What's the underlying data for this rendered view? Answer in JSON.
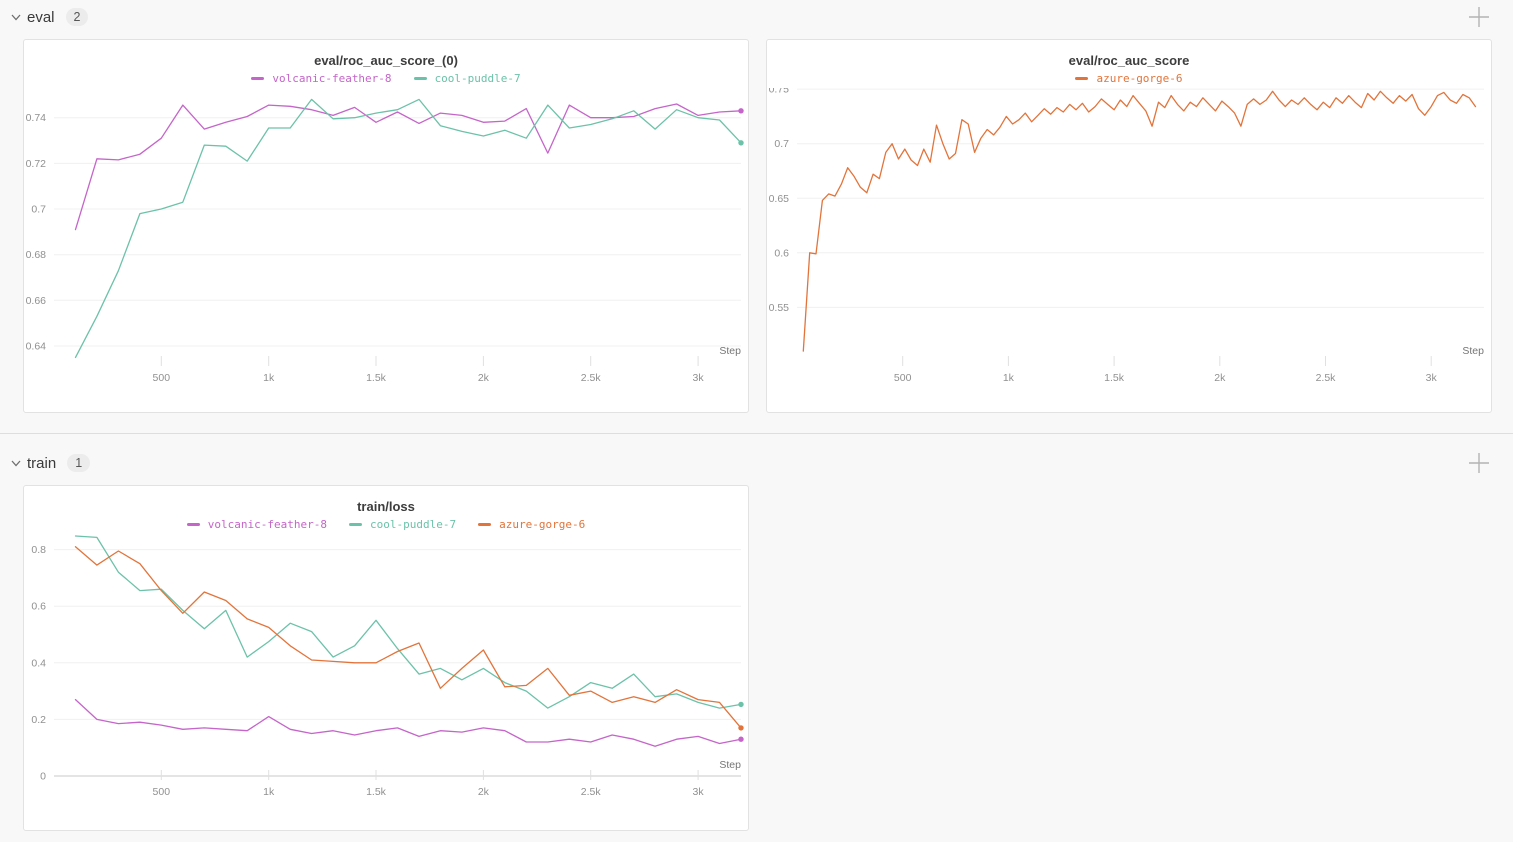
{
  "sections": [
    {
      "label": "eval",
      "count": "2"
    },
    {
      "label": "train",
      "count": "1"
    }
  ],
  "icons": {
    "collapse_chevron": "chevron-down",
    "add_panel": "plus"
  },
  "colors": {
    "run_volcanic_feather_8": "#C565C9",
    "run_cool_puddle_7": "#6CC2A8",
    "run_azure_gorge_6": "#E2743B",
    "gridline": "#f0f0f0",
    "zeroline": "#c9c9c9",
    "tick_text": "#909090",
    "step_text": "#757575"
  },
  "chart_data": [
    {
      "type": "line",
      "title": "eval/roc_auc_score_(0)",
      "xlabel": "Step",
      "legend_position": "top",
      "grid": "horizontal",
      "xlim": [
        0,
        3200
      ],
      "ylim": [
        0.633,
        0.753
      ],
      "y_ticks": [
        0.64,
        0.66,
        0.68,
        0.7,
        0.72,
        0.74
      ],
      "y_tick_labels": [
        "0.64",
        "0.66",
        "0.68",
        "0.7",
        "0.72",
        "0.74"
      ],
      "x_tick_values": [
        500,
        1000,
        1500,
        2000,
        2500,
        3000
      ],
      "x_tick_labels": [
        "500",
        "1k",
        "1.5k",
        "2k",
        "2.5k",
        "3k"
      ],
      "x": [
        100,
        200,
        300,
        400,
        500,
        600,
        700,
        800,
        900,
        1000,
        1100,
        1200,
        1300,
        1400,
        1500,
        1600,
        1700,
        1800,
        1900,
        2000,
        2100,
        2200,
        2300,
        2400,
        2500,
        2600,
        2700,
        2800,
        2900,
        3000,
        3100,
        3200
      ],
      "series": [
        {
          "name": "volcanic-feather-8",
          "color": "#C565C9",
          "end_dot": true,
          "values": [
            0.691,
            0.722,
            0.7215,
            0.724,
            0.731,
            0.7455,
            0.735,
            0.738,
            0.7405,
            0.7455,
            0.745,
            0.7435,
            0.741,
            0.7445,
            0.738,
            0.7425,
            0.7375,
            0.742,
            0.741,
            0.738,
            0.7385,
            0.744,
            0.7245,
            0.7455,
            0.74,
            0.74,
            0.7405,
            0.744,
            0.746,
            0.741,
            0.7425,
            0.743
          ]
        },
        {
          "name": "cool-puddle-7",
          "color": "#6CC2A8",
          "end_dot": true,
          "values": [
            0.635,
            0.653,
            0.673,
            0.698,
            0.7,
            0.703,
            0.728,
            0.7275,
            0.721,
            0.7355,
            0.7355,
            0.748,
            0.7395,
            0.74,
            0.742,
            0.7435,
            0.748,
            0.7365,
            0.734,
            0.732,
            0.7345,
            0.731,
            0.7455,
            0.7355,
            0.737,
            0.7395,
            0.743,
            0.735,
            0.7435,
            0.74,
            0.739,
            0.729
          ]
        }
      ]
    },
    {
      "type": "line",
      "title": "eval/roc_auc_score",
      "xlabel": "Step",
      "legend_position": "top",
      "grid": "horizontal",
      "xlim": [
        0,
        3250
      ],
      "ylim": [
        0.5,
        0.751
      ],
      "y_ticks": [
        0.55,
        0.6,
        0.65,
        0.7,
        0.75
      ],
      "y_tick_labels": [
        "0.55",
        "0.6",
        "0.65",
        "0.7",
        "0.75"
      ],
      "x_tick_values": [
        500,
        1000,
        1500,
        2000,
        2500,
        3000
      ],
      "x_tick_labels": [
        "500",
        "1k",
        "1.5k",
        "2k",
        "2.5k",
        "3k"
      ],
      "x_start": 30,
      "x_step": 30,
      "series": [
        {
          "name": "azure-gorge-6",
          "color": "#E2743B",
          "end_dot": false,
          "values": [
            0.51,
            0.6,
            0.599,
            0.648,
            0.654,
            0.652,
            0.663,
            0.678,
            0.67,
            0.66,
            0.655,
            0.672,
            0.668,
            0.692,
            0.7,
            0.686,
            0.695,
            0.685,
            0.68,
            0.695,
            0.683,
            0.717,
            0.7,
            0.686,
            0.691,
            0.722,
            0.718,
            0.692,
            0.705,
            0.713,
            0.708,
            0.715,
            0.725,
            0.718,
            0.722,
            0.728,
            0.72,
            0.726,
            0.732,
            0.727,
            0.733,
            0.729,
            0.736,
            0.731,
            0.737,
            0.729,
            0.734,
            0.741,
            0.736,
            0.731,
            0.74,
            0.734,
            0.744,
            0.737,
            0.73,
            0.716,
            0.738,
            0.733,
            0.744,
            0.736,
            0.73,
            0.738,
            0.734,
            0.742,
            0.736,
            0.73,
            0.739,
            0.734,
            0.728,
            0.716,
            0.736,
            0.741,
            0.736,
            0.74,
            0.748,
            0.74,
            0.734,
            0.74,
            0.736,
            0.742,
            0.736,
            0.731,
            0.738,
            0.733,
            0.742,
            0.737,
            0.744,
            0.738,
            0.733,
            0.746,
            0.74,
            0.748,
            0.742,
            0.737,
            0.744,
            0.739,
            0.745,
            0.732,
            0.726,
            0.734,
            0.744,
            0.747,
            0.74,
            0.737,
            0.745,
            0.742,
            0.734
          ]
        }
      ]
    },
    {
      "type": "line",
      "title": "train/loss",
      "xlabel": "Step",
      "legend_position": "top",
      "grid": "horizontal",
      "xlim": [
        0,
        3200
      ],
      "ylim": [
        0,
        0.855
      ],
      "y_ticks": [
        0,
        0.2,
        0.4,
        0.6,
        0.8
      ],
      "y_tick_labels": [
        "0",
        "0.2",
        "0.4",
        "0.6",
        "0.8"
      ],
      "x_tick_values": [
        500,
        1000,
        1500,
        2000,
        2500,
        3000
      ],
      "x_tick_labels": [
        "500",
        "1k",
        "1.5k",
        "2k",
        "2.5k",
        "3k"
      ],
      "x": [
        100,
        200,
        300,
        400,
        500,
        600,
        700,
        800,
        900,
        1000,
        1100,
        1200,
        1300,
        1400,
        1500,
        1600,
        1700,
        1800,
        1900,
        2000,
        2100,
        2200,
        2300,
        2400,
        2500,
        2600,
        2700,
        2800,
        2900,
        3000,
        3100,
        3200
      ],
      "series": [
        {
          "name": "volcanic-feather-8",
          "color": "#C565C9",
          "end_dot": true,
          "values": [
            0.27,
            0.2,
            0.185,
            0.19,
            0.18,
            0.165,
            0.17,
            0.165,
            0.16,
            0.21,
            0.165,
            0.15,
            0.16,
            0.145,
            0.16,
            0.17,
            0.14,
            0.16,
            0.155,
            0.17,
            0.16,
            0.12,
            0.12,
            0.13,
            0.12,
            0.145,
            0.13,
            0.105,
            0.13,
            0.14,
            0.115,
            0.13
          ]
        },
        {
          "name": "cool-puddle-7",
          "color": "#6CC2A8",
          "end_dot": true,
          "values": [
            0.848,
            0.843,
            0.72,
            0.655,
            0.66,
            0.585,
            0.52,
            0.585,
            0.42,
            0.475,
            0.54,
            0.51,
            0.42,
            0.46,
            0.55,
            0.45,
            0.36,
            0.38,
            0.34,
            0.38,
            0.33,
            0.3,
            0.24,
            0.28,
            0.33,
            0.31,
            0.36,
            0.28,
            0.29,
            0.26,
            0.24,
            0.253
          ]
        },
        {
          "name": "azure-gorge-6",
          "color": "#E2743B",
          "end_dot": true,
          "values": [
            0.81,
            0.745,
            0.795,
            0.75,
            0.655,
            0.575,
            0.65,
            0.62,
            0.555,
            0.525,
            0.46,
            0.41,
            0.405,
            0.4,
            0.4,
            0.44,
            0.47,
            0.31,
            0.38,
            0.445,
            0.315,
            0.32,
            0.38,
            0.285,
            0.3,
            0.26,
            0.28,
            0.26,
            0.305,
            0.27,
            0.26,
            0.17
          ]
        }
      ]
    }
  ]
}
